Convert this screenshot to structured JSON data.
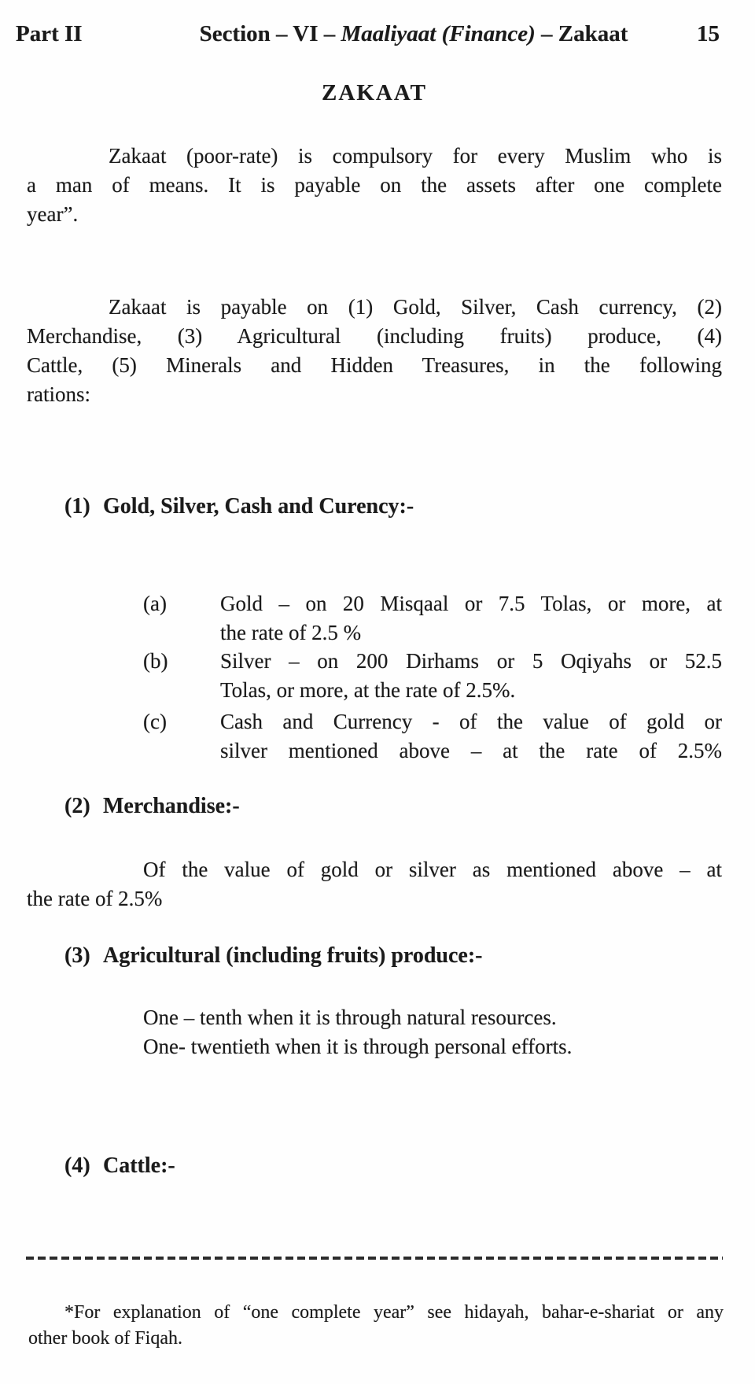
{
  "header": {
    "part": "Part II",
    "section_prefix": "Section – VI – ",
    "section_italic": "Maaliyaat (Finance)",
    "section_suffix": " – Zakaat",
    "page_number": "15"
  },
  "title": "ZAKAAT",
  "intro": {
    "lines": [
      "Zakaat (poor-rate) is compulsory for every Muslim who is",
      "a man of means. It is payable on the assets after one complete",
      "year”."
    ]
  },
  "payable": {
    "lines": [
      "Zakaat is payable on (1) Gold, Silver, Cash currency, (2)",
      "Merchandise, (3) Agricultural (including fruits) produce, (4)",
      "Cattle, (5) Minerals and Hidden Treasures, in the following",
      "rations:"
    ]
  },
  "sections": {
    "s1": {
      "number": "(1)",
      "heading": "Gold, Silver, Cash and Curency:-"
    },
    "s2": {
      "number": "(2)",
      "heading": "Merchandise:-"
    },
    "s3": {
      "number": "(3)",
      "heading": "Agricultural (including fruits) produce:-"
    },
    "s4": {
      "number": "(4)",
      "heading": "Cattle:-"
    }
  },
  "gold_list": {
    "a": {
      "label": "(a)",
      "line1": "Gold – on 20 Misqaal or 7.5 Tolas, or more, at",
      "line2": "the rate of 2.5 %"
    },
    "b": {
      "label": "(b)",
      "line1": "Silver – on 200 Dirhams or 5 Oqiyahs or 52.5",
      "line2": "Tolas, or more, at the rate of 2.5%."
    },
    "c": {
      "label": "(c)",
      "line1": "Cash and Currency - of the value of gold or",
      "line2": "silver mentioned above – at the rate of 2.5%"
    }
  },
  "merchandise": {
    "lines": [
      "Of the value of gold or silver as mentioned above – at",
      "the rate of 2.5%"
    ]
  },
  "agriculture": {
    "lines": [
      "One – tenth when it is through natural resources.",
      "One- twentieth when it is through personal efforts."
    ]
  },
  "footnote": {
    "lines": [
      "*For explanation of “one complete year” see hidayah, bahar-e-shariat or any",
      "other book of Fiqah."
    ]
  }
}
